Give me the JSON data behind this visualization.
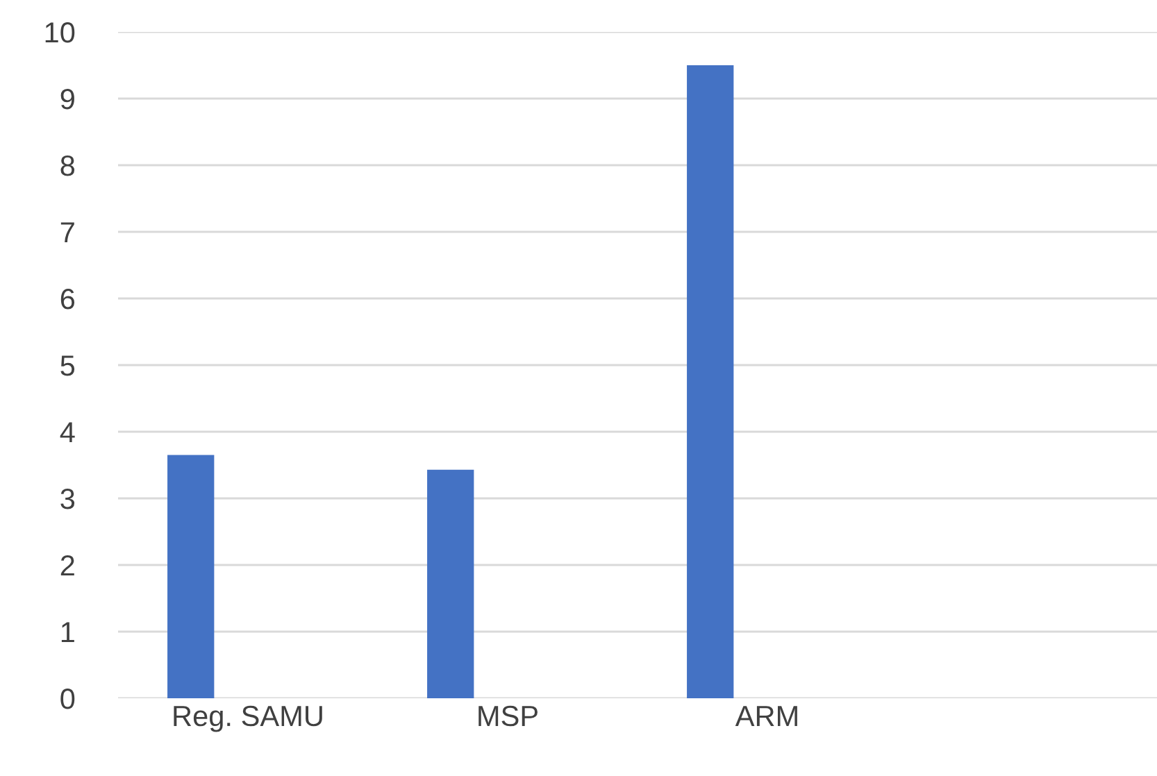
{
  "chart_data": {
    "type": "bar",
    "categories": [
      "Reg. SAMU",
      "MSP",
      "ARM",
      null
    ],
    "values": [
      3.65,
      3.43,
      9.5,
      null
    ],
    "color": "#4472c4",
    "ylim": [
      0,
      10
    ],
    "yticks": [
      0,
      1,
      2,
      3,
      4,
      5,
      6,
      7,
      8,
      9,
      10
    ],
    "grid": "y"
  }
}
